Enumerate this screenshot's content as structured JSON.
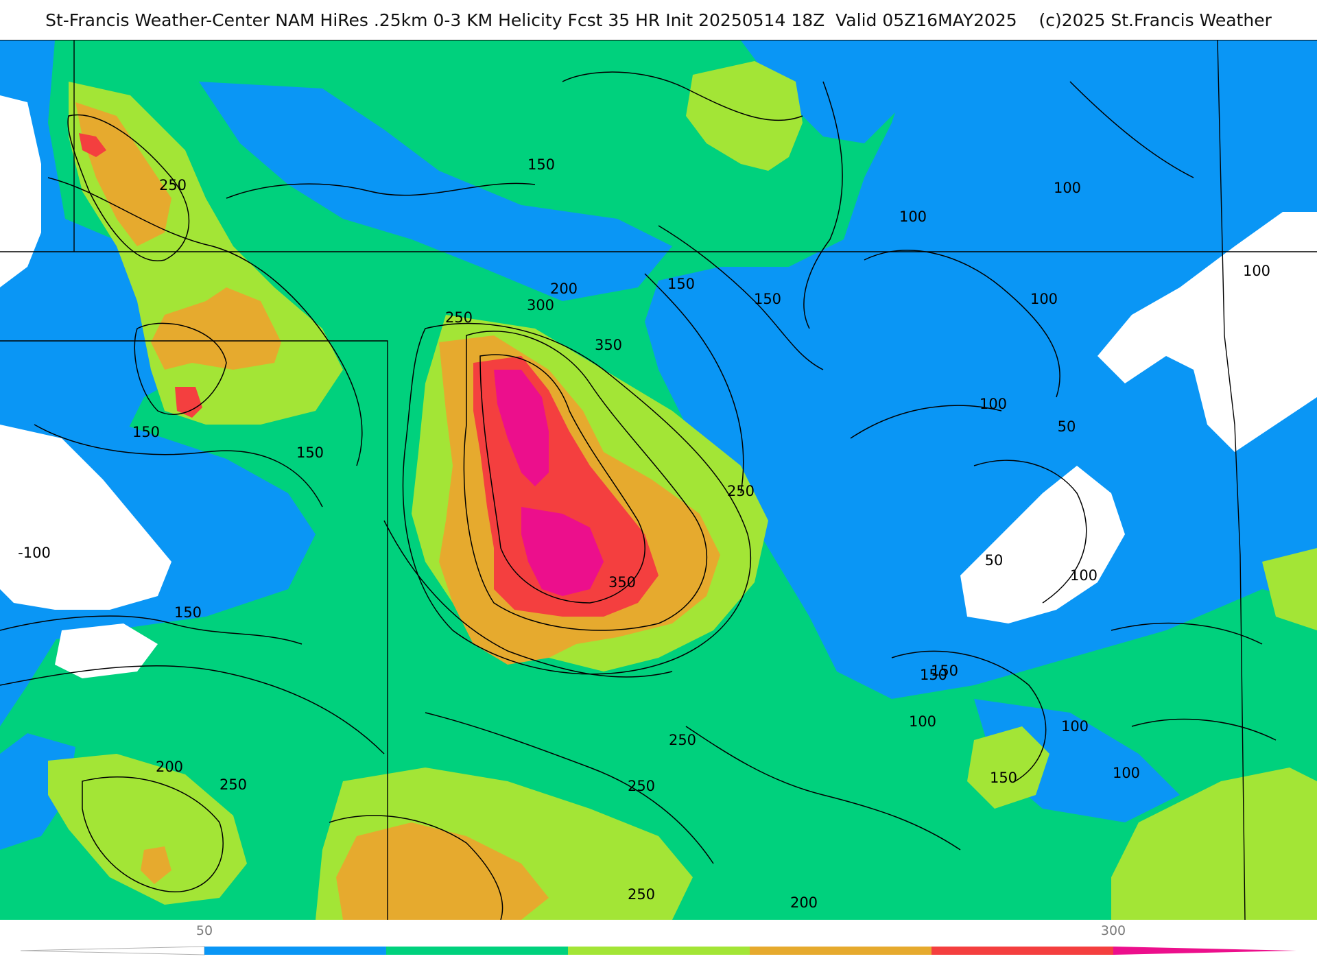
{
  "title": "St-Francis Weather-Center NAM HiRes .25km 0-3 KM Helicity Fcst 35 HR Init 20250514 18Z  Valid 05Z16MAY2025    (c)2025 St.Francis Weather",
  "colors": {
    "below_50": "#ffffff",
    "c50_100": "#0a96f5",
    "c100_150": "#00d17d",
    "c150_200": "#a3e536",
    "c200_250": "#e6aa2e",
    "c250_300": "#f43f3f",
    "c300_plus": "#ec0f8c",
    "contour": "#000000",
    "boundary": "#000000",
    "county": "#b9bec2"
  },
  "contour_labels": [
    "250",
    "150",
    "150",
    "150",
    "-100",
    "150",
    "200",
    "250",
    "150",
    "100",
    "100",
    "150",
    "150",
    "200",
    "250",
    "300",
    "350",
    "350",
    "250",
    "100",
    "100",
    "100",
    "100",
    "50",
    "50",
    "100",
    "150",
    "100",
    "150",
    "100",
    "250",
    "250",
    "250",
    "200",
    "250"
  ],
  "legend": {
    "tick_labels": [
      "50",
      "300"
    ],
    "bins": [
      "<50",
      "50-100",
      "100-150",
      "150-200",
      "200-250",
      "250-300",
      ">300"
    ]
  }
}
